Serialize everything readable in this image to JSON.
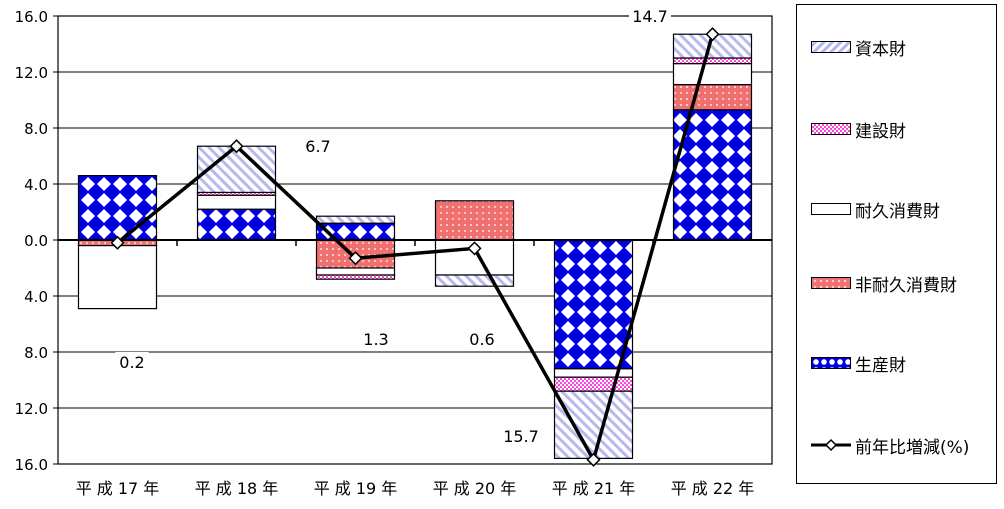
{
  "chart_data": {
    "type": "bar",
    "stacked": true,
    "categories": [
      "平 成 17 年",
      "平 成 18 年",
      "平 成 19 年",
      "平 成 20 年",
      "平 成 21 年",
      "平 成 22 年"
    ],
    "y_ticks": [
      "16.0",
      "12.0",
      "8.0",
      "4.0",
      "0.0",
      "4.0",
      "8.0",
      "12.0",
      "16.0"
    ],
    "ylim": [
      -16,
      16
    ],
    "grid": true,
    "legend_position": "right",
    "series": [
      {
        "name": "生産財",
        "pattern": "diamond",
        "color": "#0000ee",
        "values": [
          4.6,
          2.2,
          1.2,
          0.0,
          -9.2,
          9.3
        ]
      },
      {
        "name": "非耐久消費財",
        "pattern": "dots",
        "color": "#f08080",
        "values": [
          -0.4,
          0.0,
          -2.0,
          2.8,
          0.0,
          1.8
        ]
      },
      {
        "name": "耐久消費財",
        "pattern": "solid",
        "color": "#ffffff",
        "values": [
          -4.5,
          1.0,
          -0.5,
          -2.5,
          -0.6,
          1.5
        ]
      },
      {
        "name": "建設財",
        "pattern": "checker",
        "color": "#ff33cc",
        "values": [
          0.0,
          0.2,
          -0.3,
          0.0,
          -1.0,
          0.4
        ]
      },
      {
        "name": "資本財",
        "pattern": "hatch",
        "color": "#a0a0e8",
        "values": [
          0.0,
          3.3,
          0.5,
          -0.8,
          -4.8,
          1.7
        ]
      }
    ],
    "line": {
      "name": "前年比増減(%)",
      "values": [
        -0.2,
        6.7,
        -1.3,
        -0.6,
        -15.7,
        14.7
      ],
      "labels": [
        "0.2",
        "6.7",
        "1.3",
        "0.6",
        "15.7",
        "14.7"
      ]
    }
  }
}
